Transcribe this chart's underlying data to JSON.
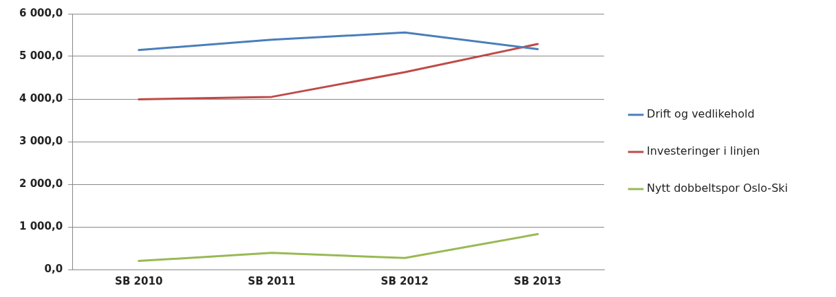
{
  "chart_data": {
    "type": "line",
    "categories": [
      "SB 2010",
      "SB 2011",
      "SB 2012",
      "SB 2013"
    ],
    "series": [
      {
        "name": "Drift og vedlikehold",
        "color": "#4a7ebb",
        "values": [
          5150,
          5390,
          5560,
          5170
        ]
      },
      {
        "name": "Investeringer i linjen",
        "color": "#be4b48",
        "values": [
          3990,
          4050,
          4630,
          5290
        ]
      },
      {
        "name": "Nytt dobbeltspor Oslo-Ski",
        "color": "#98b954",
        "values": [
          200,
          390,
          270,
          830
        ]
      }
    ],
    "ylim": [
      0,
      6000
    ],
    "yticks": [
      {
        "value": 0,
        "label": "0,0"
      },
      {
        "value": 1000,
        "label": "1 000,0"
      },
      {
        "value": 2000,
        "label": "2 000,0"
      },
      {
        "value": 3000,
        "label": "3 000,0"
      },
      {
        "value": 4000,
        "label": "4 000,0"
      },
      {
        "value": 5000,
        "label": "5 000,0"
      },
      {
        "value": 6000,
        "label": "6 000,0"
      }
    ],
    "grid": "y",
    "legend": "right",
    "marker": "none",
    "line_style": "solid"
  }
}
